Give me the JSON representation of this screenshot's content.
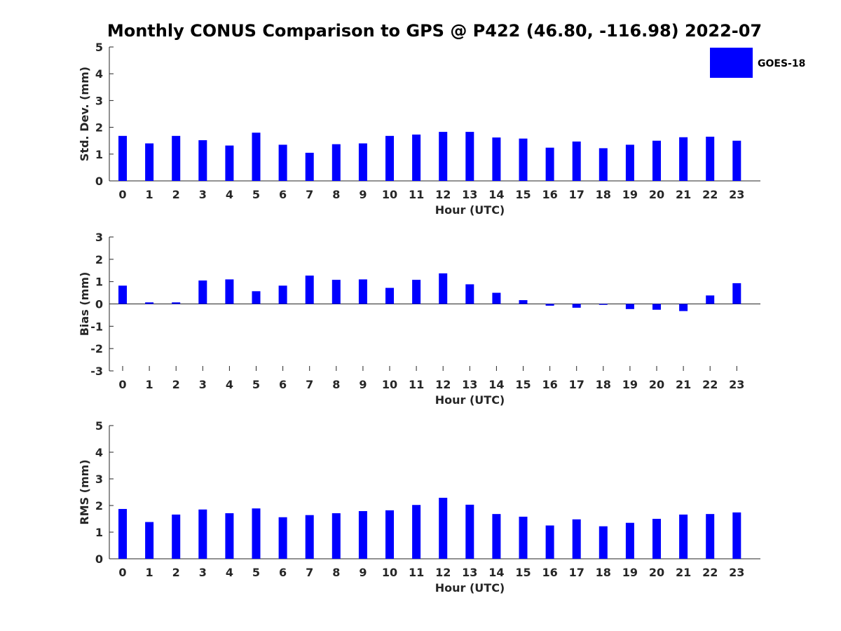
{
  "title": "Monthly CONUS Comparison to GPS @ P422 (46.80, -116.98) 2022-07",
  "legend": {
    "label": "GOES-18",
    "color": "#0000ff",
    "position": "top-right"
  },
  "chart_data": [
    {
      "type": "bar",
      "xlabel": "Hour (UTC)",
      "ylabel": "Std. Dev. (mm)",
      "ylim": [
        0,
        5
      ],
      "yticks": [
        0,
        1,
        2,
        3,
        4,
        5
      ],
      "categories": [
        "0",
        "1",
        "2",
        "3",
        "4",
        "5",
        "6",
        "7",
        "8",
        "9",
        "10",
        "11",
        "12",
        "13",
        "14",
        "15",
        "16",
        "17",
        "18",
        "19",
        "20",
        "21",
        "22",
        "23"
      ],
      "series": [
        {
          "name": "GOES-18",
          "color": "#0000ff",
          "values": [
            1.68,
            1.4,
            1.68,
            1.52,
            1.32,
            1.8,
            1.35,
            1.05,
            1.37,
            1.4,
            1.68,
            1.73,
            1.83,
            1.83,
            1.62,
            1.58,
            1.24,
            1.47,
            1.22,
            1.35,
            1.5,
            1.63,
            1.65,
            1.5
          ]
        }
      ]
    },
    {
      "type": "bar",
      "xlabel": "Hour (UTC)",
      "ylabel": "Bias (mm)",
      "ylim": [
        -3,
        3
      ],
      "yticks": [
        -3,
        -2,
        -1,
        0,
        1,
        2,
        3
      ],
      "categories": [
        "0",
        "1",
        "2",
        "3",
        "4",
        "5",
        "6",
        "7",
        "8",
        "9",
        "10",
        "11",
        "12",
        "13",
        "14",
        "15",
        "16",
        "17",
        "18",
        "19",
        "20",
        "21",
        "22",
        "23"
      ],
      "series": [
        {
          "name": "GOES-18",
          "color": "#0000ff",
          "values": [
            0.82,
            0.07,
            0.07,
            1.05,
            1.1,
            0.57,
            0.82,
            1.27,
            1.08,
            1.1,
            0.72,
            1.08,
            1.37,
            0.88,
            0.5,
            0.17,
            -0.08,
            -0.17,
            -0.04,
            -0.23,
            -0.26,
            -0.32,
            0.38,
            0.93
          ]
        }
      ]
    },
    {
      "type": "bar",
      "xlabel": "Hour (UTC)",
      "ylabel": "RMS (mm)",
      "ylim": [
        0,
        5
      ],
      "yticks": [
        0,
        1,
        2,
        3,
        4,
        5
      ],
      "categories": [
        "0",
        "1",
        "2",
        "3",
        "4",
        "5",
        "6",
        "7",
        "8",
        "9",
        "10",
        "11",
        "12",
        "13",
        "14",
        "15",
        "16",
        "17",
        "18",
        "19",
        "20",
        "21",
        "22",
        "23"
      ],
      "series": [
        {
          "name": "GOES-18",
          "color": "#0000ff",
          "values": [
            1.87,
            1.38,
            1.66,
            1.85,
            1.71,
            1.89,
            1.56,
            1.64,
            1.71,
            1.79,
            1.82,
            2.02,
            2.29,
            2.03,
            1.68,
            1.58,
            1.25,
            1.48,
            1.22,
            1.35,
            1.5,
            1.66,
            1.68,
            1.74
          ]
        }
      ]
    }
  ]
}
